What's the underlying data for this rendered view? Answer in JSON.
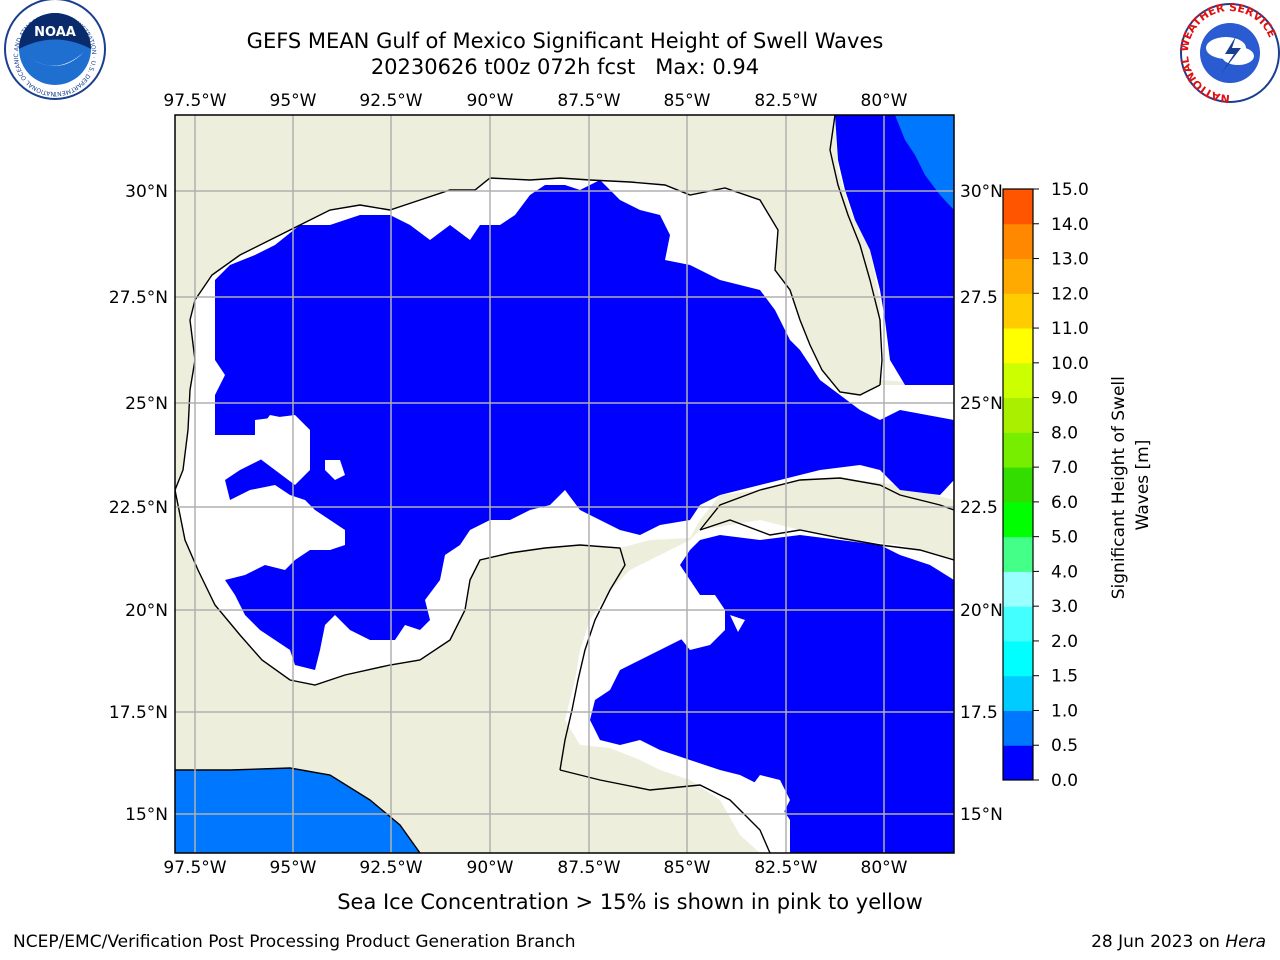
{
  "title": {
    "line1": "GEFS MEAN Gulf of Mexico Significant Height of Swell Waves",
    "line2": "20230626 t00z 072h fcst   Max: 0.94"
  },
  "map": {
    "lon_labels": [
      "97.5°W",
      "95°W",
      "92.5°W",
      "90°W",
      "87.5°W",
      "85°W",
      "82.5°W",
      "80°W"
    ],
    "lat_labels": [
      "30°N",
      "27.5°N",
      "25°N",
      "22.5°N",
      "20°N",
      "17.5°N",
      "15°N"
    ],
    "right_lat_labels": [
      "30°N",
      "27.5",
      "25°N",
      "22.5",
      "20°N",
      "17.5",
      "15°N"
    ],
    "land_color": "#eeeedd",
    "ocean_low_color": "#0000ff",
    "ocean_mid_color": "#0077ff",
    "missing_color": "#ffffff",
    "grid_color": "#b0b0b0"
  },
  "colorbar": {
    "label": "Significant Height of Swell Waves [m]",
    "ticks": [
      "0.0",
      "0.5",
      "1.0",
      "1.5",
      "2.0",
      "3.0",
      "4.0",
      "5.0",
      "6.0",
      "7.0",
      "8.0",
      "9.0",
      "10.0",
      "11.0",
      "12.0",
      "13.0",
      "14.0",
      "15.0"
    ],
    "colors": [
      "#0000ff",
      "#0077ff",
      "#00ccff",
      "#00ffff",
      "#44ffff",
      "#99ffff",
      "#44ff88",
      "#00ff00",
      "#33dd00",
      "#77ee00",
      "#aaee00",
      "#ccff00",
      "#ffff00",
      "#ffcc00",
      "#ffaa00",
      "#ff8800",
      "#ff5500",
      "#ff2200",
      "#ff0000"
    ]
  },
  "caption": "Sea Ice Concentration > 15% is shown in pink to yellow",
  "footer": {
    "left": "NCEP/EMC/Verification Post Processing Product Generation Branch",
    "right_date": "28 Jun 2023 on ",
    "right_host": "Hera"
  },
  "logos": {
    "noaa_text": "NOAA",
    "noaa_ring": "NATIONAL OCEANIC AND ATMOSPHERIC ADMINISTRATION · U.S. DEPARTMENT OF COMMERCE",
    "nws_ring": "NATIONAL WEATHER SERVICE"
  }
}
